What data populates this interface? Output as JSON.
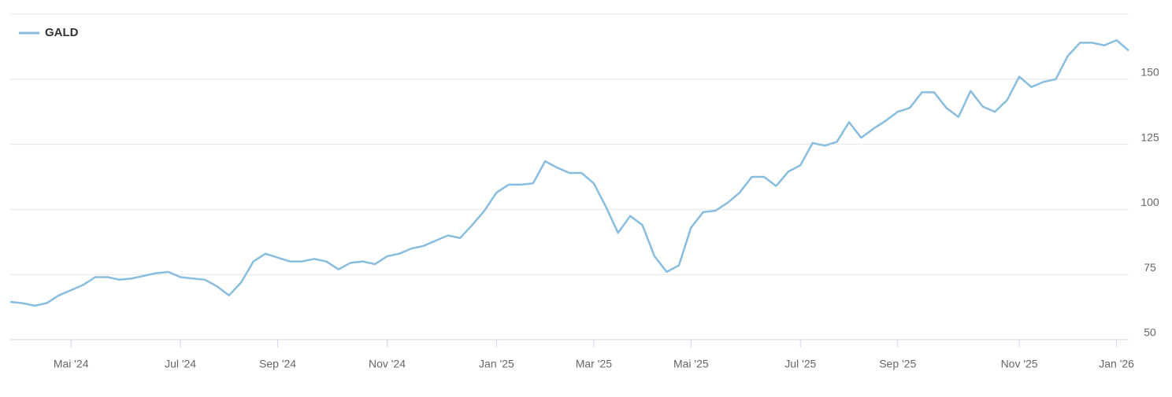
{
  "chart_data": {
    "type": "line",
    "categories": [
      null,
      null,
      null,
      null,
      null,
      "Mai '24",
      null,
      null,
      null,
      null,
      null,
      null,
      null,
      null,
      "Jul '24",
      null,
      null,
      null,
      null,
      null,
      null,
      null,
      "Sep '24",
      null,
      null,
      null,
      null,
      null,
      null,
      null,
      null,
      "Nov '24",
      null,
      null,
      null,
      null,
      null,
      null,
      null,
      null,
      "Jan '25",
      null,
      null,
      null,
      null,
      null,
      null,
      null,
      "Mar '25",
      null,
      null,
      null,
      null,
      null,
      null,
      null,
      "Mai '25",
      null,
      null,
      null,
      null,
      null,
      null,
      null,
      null,
      "Jul '25",
      null,
      null,
      null,
      null,
      null,
      null,
      null,
      "Sep '25",
      null,
      null,
      null,
      null,
      null,
      null,
      null,
      null,
      null,
      "Nov '25",
      null,
      null,
      null,
      null,
      null,
      null,
      null,
      "Jan '26",
      null
    ],
    "series": [
      {
        "name": "GALD",
        "color": "#88bde0",
        "values": [
          64.5,
          64,
          63,
          64,
          67,
          69,
          71,
          74,
          74,
          73,
          73.5,
          74.5,
          75.5,
          76,
          74,
          73.5,
          73,
          70.5,
          67,
          72,
          80,
          83,
          81.5,
          80,
          80,
          81,
          80,
          77,
          79.5,
          80,
          79,
          82,
          83,
          85,
          86,
          88,
          90,
          89,
          94,
          99.5,
          106.5,
          109.5,
          109.5,
          110,
          118.5,
          116,
          114,
          114,
          110,
          101,
          91,
          97.5,
          94,
          82,
          76,
          78.5,
          93,
          99,
          99.5,
          102.5,
          106.5,
          112.5,
          112.5,
          109,
          114.5,
          117,
          125.5,
          124.5,
          126,
          133.5,
          127.5,
          131,
          134,
          137.5,
          139,
          145,
          145,
          139,
          135.5,
          145.5,
          139.5,
          137.5,
          142,
          151,
          147,
          149,
          150,
          159,
          164,
          164,
          163,
          165,
          161
        ]
      }
    ],
    "ylim": [
      50,
      175
    ],
    "yticks": [
      50,
      75,
      100,
      125,
      150
    ],
    "grid": true,
    "legend": "top-left"
  }
}
